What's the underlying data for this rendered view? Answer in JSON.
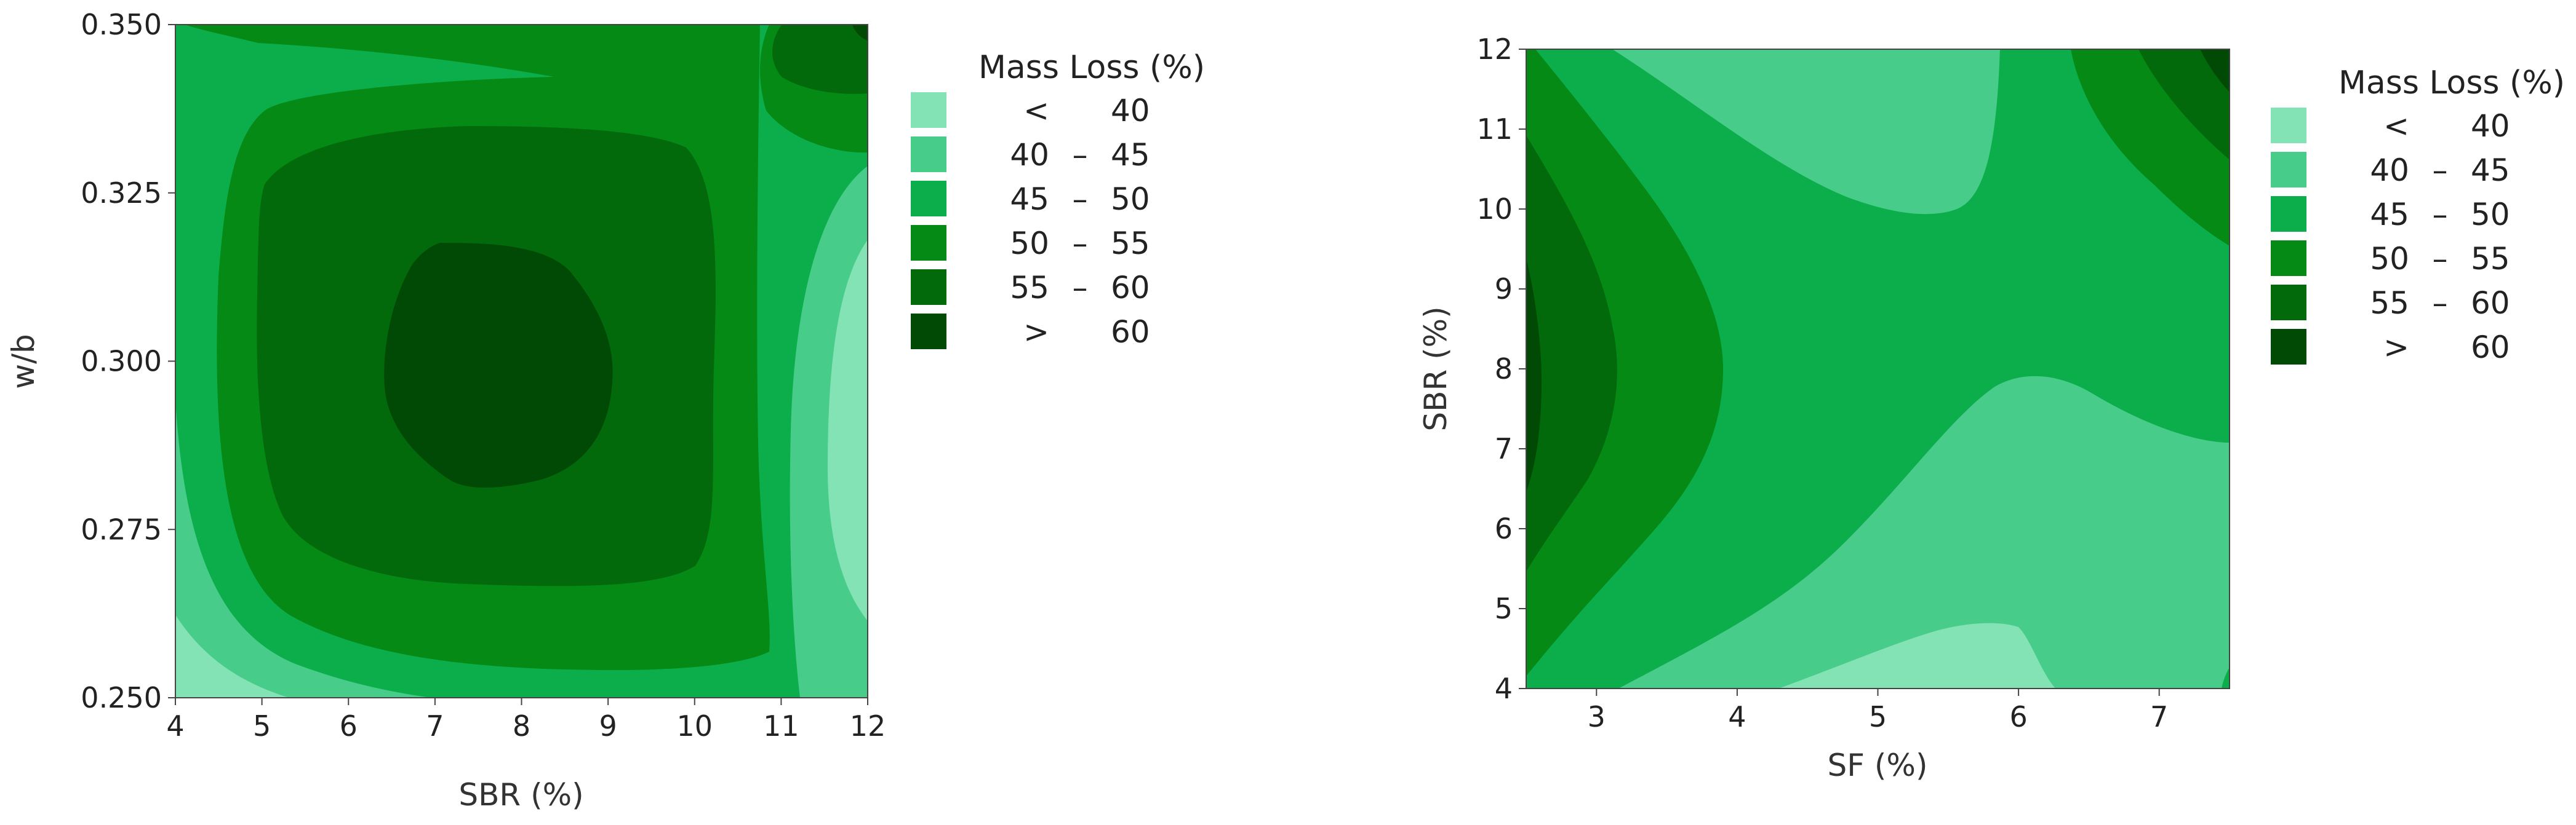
{
  "colors": {
    "lt40": "#84e3b5",
    "r40_45": "#47cc8a",
    "r45_50": "#0cae4c",
    "r50_55": "#058a15",
    "r55_60": "#026a0b",
    "gt60": "#014a05"
  },
  "legend": {
    "title": "Mass Loss (%)",
    "entries": [
      {
        "key": "lt40",
        "left": "<",
        "dash": "",
        "right": "40"
      },
      {
        "key": "r40_45",
        "left": "40",
        "dash": "–",
        "right": "45"
      },
      {
        "key": "r45_50",
        "left": "45",
        "dash": "–",
        "right": "50"
      },
      {
        "key": "r50_55",
        "left": "50",
        "dash": "–",
        "right": "55"
      },
      {
        "key": "r55_60",
        "left": "55",
        "dash": "–",
        "right": "60"
      },
      {
        "key": "gt60",
        "left": ">",
        "dash": "",
        "right": "60"
      }
    ]
  },
  "chart_data": [
    {
      "type": "contour",
      "title": "",
      "xlabel": "SBR (%)",
      "ylabel": "w/b",
      "xlim": [
        4,
        12
      ],
      "ylim": [
        0.25,
        0.35
      ],
      "xticks": [
        "4",
        "5",
        "6",
        "7",
        "8",
        "9",
        "10",
        "11",
        "12"
      ],
      "yticks": [
        "0.250",
        "0.275",
        "0.300",
        "0.325",
        "0.350"
      ],
      "z_levels": [
        40,
        45,
        50,
        55,
        60
      ],
      "legend_position": "right"
    },
    {
      "type": "contour",
      "title": "",
      "xlabel": "SF (%)",
      "ylabel": "SBR (%)",
      "xlim": [
        2.5,
        7.5
      ],
      "ylim": [
        4,
        12
      ],
      "xticks": [
        "3",
        "4",
        "5",
        "6",
        "7"
      ],
      "yticks": [
        "4",
        "5",
        "6",
        "7",
        "8",
        "9",
        "10",
        "11",
        "12"
      ],
      "z_levels": [
        40,
        45,
        50,
        55,
        60
      ],
      "legend_position": "right"
    }
  ]
}
